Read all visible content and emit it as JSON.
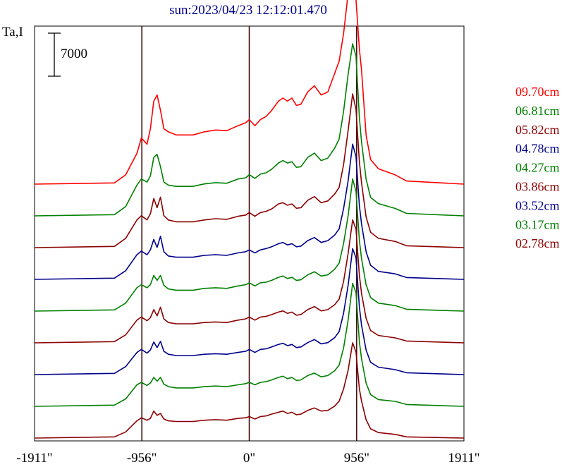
{
  "chart_data": {
    "type": "line",
    "title": "sun:2023/04/23 12:12:01.470",
    "ylabel": "Ta,I",
    "scale_bar_label": "7000",
    "x_tick_labels": [
      "-1911\"",
      "-956\"",
      "0\"",
      "956\"",
      "1911\""
    ],
    "x_ticks": [
      -1911,
      -956,
      0,
      956,
      1911
    ],
    "xlim": [
      -1911,
      1911
    ],
    "vertical_markers": [
      -956,
      0,
      956
    ],
    "offset_step": 7000,
    "legend_placement": "right",
    "series": [
      {
        "name": "09.70cm",
        "color": "#ff0000",
        "offset": 8,
        "x": [
          -1911,
          -1200,
          -1100,
          -1000,
          -960,
          -910,
          -880,
          -850,
          -820,
          -790,
          -760,
          -720,
          -650,
          -500,
          -400,
          -300,
          -200,
          -100,
          -30,
          0,
          50,
          100,
          150,
          200,
          260,
          300,
          340,
          380,
          420,
          460,
          520,
          580,
          640,
          700,
          760,
          800,
          840,
          880,
          920,
          950,
          980,
          1000,
          1040,
          1080,
          1150,
          1300,
          1400,
          1911
        ],
        "y": [
          0,
          200,
          1500,
          5000,
          7500,
          6500,
          9000,
          13500,
          14500,
          12000,
          9000,
          8500,
          8000,
          8000,
          8500,
          8800,
          8700,
          9500,
          10000,
          10500,
          9500,
          10500,
          11000,
          12000,
          13500,
          14000,
          13500,
          14000,
          12800,
          13000,
          15000,
          16000,
          14500,
          15000,
          18000,
          20000,
          24500,
          31000,
          33000,
          30000,
          22000,
          18500,
          8000,
          4000,
          2500,
          1500,
          500,
          0
        ]
      },
      {
        "name": "06.81cm",
        "color": "#008000",
        "offset": 7,
        "x": [
          -1911,
          -1200,
          -1100,
          -1000,
          -960,
          -910,
          -880,
          -850,
          -820,
          -790,
          -760,
          -720,
          -650,
          -500,
          -400,
          -300,
          -200,
          -100,
          -30,
          0,
          50,
          100,
          150,
          200,
          260,
          300,
          340,
          380,
          420,
          460,
          520,
          580,
          640,
          700,
          760,
          800,
          840,
          880,
          920,
          950,
          980,
          1000,
          1040,
          1080,
          1150,
          1300,
          1400,
          1911
        ],
        "y": [
          0,
          200,
          1500,
          5000,
          6000,
          5500,
          6500,
          9500,
          10000,
          8000,
          5500,
          5000,
          4800,
          4800,
          5200,
          5400,
          5300,
          6000,
          6200,
          6700,
          6100,
          6800,
          7000,
          7600,
          8600,
          9000,
          8600,
          8800,
          7900,
          8000,
          9500,
          10200,
          9000,
          9400,
          11000,
          12500,
          17000,
          23000,
          28000,
          26000,
          16000,
          12000,
          6000,
          3000,
          2000,
          1200,
          400,
          0
        ]
      },
      {
        "name": "05.82cm",
        "color": "#8b0000",
        "offset": 6,
        "x": [
          -1911,
          -1200,
          -1100,
          -1000,
          -960,
          -910,
          -880,
          -850,
          -820,
          -790,
          -760,
          -720,
          -650,
          -500,
          -400,
          -300,
          -200,
          -100,
          -30,
          0,
          50,
          100,
          150,
          200,
          260,
          300,
          340,
          380,
          420,
          460,
          520,
          580,
          640,
          700,
          760,
          800,
          840,
          880,
          920,
          950,
          980,
          1000,
          1040,
          1080,
          1150,
          1300,
          1400,
          1911
        ],
        "y": [
          0,
          200,
          1500,
          4500,
          5200,
          4500,
          5500,
          8000,
          6500,
          8200,
          5200,
          4500,
          4200,
          4200,
          4500,
          4700,
          4600,
          5100,
          5300,
          5700,
          5100,
          5700,
          5900,
          6300,
          7100,
          7300,
          6900,
          7100,
          6400,
          6500,
          7700,
          8300,
          7300,
          7600,
          8700,
          9800,
          13500,
          19000,
          25000,
          22500,
          14000,
          10500,
          5000,
          2500,
          1500,
          1000,
          300,
          0
        ]
      },
      {
        "name": "04.78cm",
        "color": "#00008b",
        "offset": 5,
        "x": [
          -1911,
          -1200,
          -1100,
          -1000,
          -960,
          -910,
          -880,
          -850,
          -820,
          -790,
          -760,
          -720,
          -650,
          -500,
          -400,
          -300,
          -200,
          -100,
          -30,
          0,
          50,
          100,
          150,
          200,
          260,
          300,
          340,
          380,
          420,
          460,
          520,
          580,
          640,
          700,
          760,
          800,
          840,
          880,
          920,
          950,
          980,
          1000,
          1040,
          1080,
          1150,
          1300,
          1400,
          1911
        ],
        "y": [
          0,
          200,
          1400,
          4000,
          4600,
          4000,
          4800,
          6500,
          5200,
          7000,
          4500,
          3800,
          3600,
          3600,
          3900,
          4000,
          3900,
          4300,
          4500,
          4800,
          4300,
          4800,
          5000,
          5300,
          5800,
          6000,
          5600,
          5800,
          5300,
          5400,
          6300,
          6800,
          6000,
          6300,
          7200,
          8200,
          11500,
          16000,
          22000,
          20000,
          12000,
          9000,
          4500,
          2300,
          1300,
          900,
          300,
          0
        ]
      },
      {
        "name": "04.27cm",
        "color": "#008000",
        "offset": 4,
        "x": [
          -1911,
          -1200,
          -1100,
          -1000,
          -960,
          -910,
          -880,
          -850,
          -820,
          -790,
          -760,
          -720,
          -650,
          -500,
          -400,
          -300,
          -200,
          -100,
          -30,
          0,
          50,
          100,
          150,
          200,
          260,
          300,
          340,
          380,
          420,
          460,
          520,
          580,
          640,
          700,
          760,
          800,
          840,
          880,
          920,
          950,
          980,
          1000,
          1040,
          1080,
          1150,
          1300,
          1400,
          1911
        ],
        "y": [
          0,
          200,
          1300,
          3800,
          4300,
          3800,
          4300,
          5800,
          5000,
          5800,
          4200,
          3600,
          3400,
          3400,
          3700,
          3800,
          3700,
          4100,
          4300,
          4600,
          4100,
          4600,
          4700,
          5000,
          5500,
          5700,
          5300,
          5500,
          5000,
          5100,
          5900,
          6400,
          5700,
          5900,
          6800,
          7800,
          11000,
          15500,
          21500,
          19500,
          11500,
          8500,
          4300,
          2200,
          1300,
          900,
          300,
          0
        ]
      },
      {
        "name": "03.86cm",
        "color": "#8b0000",
        "offset": 3,
        "x": [
          -1911,
          -1200,
          -1100,
          -1000,
          -960,
          -910,
          -880,
          -850,
          -820,
          -790,
          -760,
          -720,
          -650,
          -500,
          -400,
          -300,
          -200,
          -100,
          -30,
          0,
          50,
          100,
          150,
          200,
          260,
          300,
          340,
          380,
          420,
          460,
          520,
          580,
          640,
          700,
          760,
          800,
          840,
          880,
          920,
          950,
          980,
          1000,
          1040,
          1080,
          1150,
          1300,
          1400,
          1911
        ],
        "y": [
          0,
          200,
          1300,
          3700,
          4200,
          3600,
          4100,
          5400,
          4400,
          5800,
          3900,
          3300,
          3100,
          3100,
          3300,
          3400,
          3300,
          3700,
          3900,
          4200,
          3700,
          4200,
          4300,
          4600,
          5000,
          5200,
          4800,
          5000,
          4500,
          4600,
          5400,
          5900,
          5200,
          5400,
          6200,
          7100,
          10000,
          14500,
          20000,
          18500,
          11000,
          8000,
          4000,
          2000,
          1200,
          800,
          300,
          0
        ]
      },
      {
        "name": "03.52cm",
        "color": "#00008b",
        "offset": 2,
        "x": [
          -1911,
          -1200,
          -1100,
          -1000,
          -960,
          -910,
          -880,
          -850,
          -820,
          -790,
          -760,
          -720,
          -650,
          -500,
          -400,
          -300,
          -200,
          -100,
          -30,
          0,
          50,
          100,
          150,
          200,
          260,
          300,
          340,
          380,
          420,
          460,
          520,
          580,
          640,
          700,
          760,
          800,
          840,
          880,
          920,
          950,
          980,
          1000,
          1040,
          1080,
          1150,
          1300,
          1400,
          1911
        ],
        "y": [
          0,
          200,
          1300,
          3600,
          4100,
          3500,
          4000,
          5300,
          4400,
          5400,
          3800,
          3300,
          3100,
          3100,
          3300,
          3400,
          3300,
          3600,
          3800,
          4100,
          3600,
          4100,
          4200,
          4500,
          4900,
          5100,
          4700,
          4900,
          4400,
          4500,
          5200,
          5700,
          5000,
          5200,
          6000,
          7000,
          10000,
          14500,
          20500,
          19000,
          11000,
          8000,
          4000,
          2000,
          1200,
          800,
          300,
          0
        ]
      },
      {
        "name": "03.17cm",
        "color": "#008000",
        "offset": 1,
        "x": [
          -1911,
          -1200,
          -1100,
          -1000,
          -960,
          -910,
          -880,
          -850,
          -820,
          -790,
          -760,
          -720,
          -650,
          -500,
          -400,
          -300,
          -200,
          -100,
          -30,
          0,
          50,
          100,
          150,
          200,
          260,
          300,
          340,
          380,
          420,
          460,
          520,
          580,
          640,
          700,
          760,
          800,
          840,
          880,
          920,
          950,
          980,
          1000,
          1040,
          1080,
          1150,
          1300,
          1400,
          1911
        ],
        "y": [
          0,
          200,
          1200,
          3500,
          3900,
          3400,
          3800,
          4700,
          4100,
          4700,
          3600,
          3200,
          3000,
          3000,
          3200,
          3300,
          3200,
          3500,
          3700,
          3900,
          3500,
          3900,
          4000,
          4300,
          4700,
          4900,
          4500,
          4700,
          4200,
          4300,
          5000,
          5400,
          4800,
          5000,
          5800,
          6700,
          9500,
          14000,
          20000,
          18500,
          10500,
          7700,
          3800,
          1900,
          1100,
          800,
          300,
          0
        ]
      },
      {
        "name": "02.78cm",
        "color": "#8b0000",
        "offset": 0,
        "x": [
          -1911,
          -1200,
          -1100,
          -1000,
          -960,
          -910,
          -880,
          -850,
          -820,
          -790,
          -760,
          -720,
          -650,
          -500,
          -400,
          -300,
          -200,
          -100,
          -30,
          0,
          50,
          100,
          150,
          200,
          260,
          300,
          340,
          380,
          420,
          460,
          520,
          580,
          640,
          700,
          760,
          800,
          840,
          880,
          920,
          950,
          980,
          1000,
          1040,
          1080,
          1150,
          1300,
          1400,
          1911
        ],
        "y": [
          0,
          200,
          1000,
          2800,
          3300,
          2900,
          3200,
          4400,
          3700,
          4000,
          3100,
          2800,
          2700,
          2700,
          2900,
          3000,
          2900,
          3200,
          3300,
          3500,
          3100,
          3500,
          3600,
          3900,
          4200,
          4400,
          4000,
          4200,
          3800,
          3900,
          4500,
          4900,
          4400,
          4500,
          5200,
          6000,
          8000,
          11000,
          15500,
          14000,
          8000,
          6000,
          3000,
          1500,
          900,
          600,
          200,
          0
        ]
      }
    ]
  }
}
